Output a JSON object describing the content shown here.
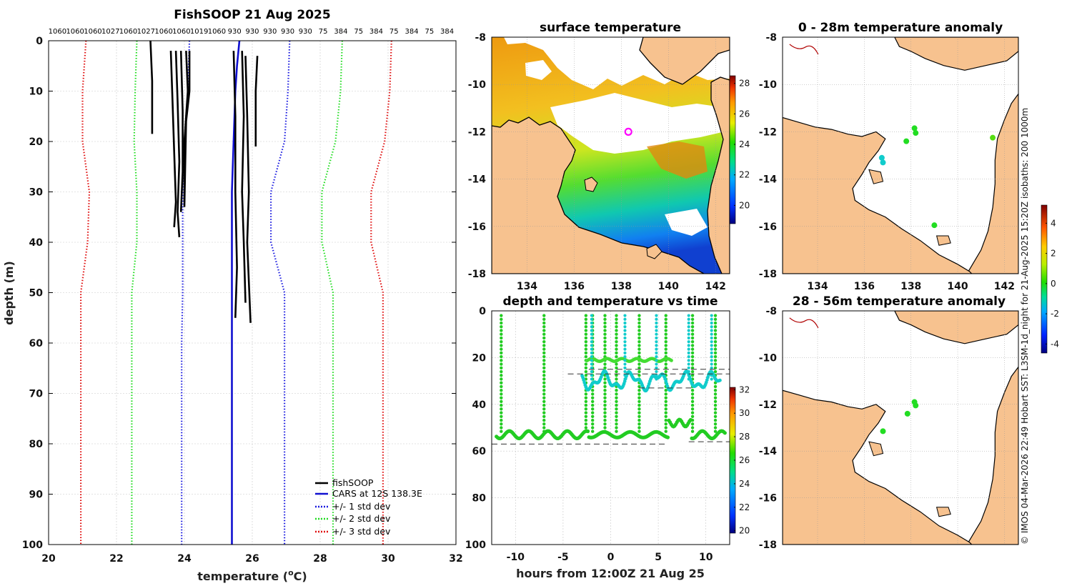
{
  "colors": {
    "land": "#F7C28F",
    "profile": "#000000",
    "cars": "#1010D0",
    "std1": "#1a1ae0",
    "std2": "#22dd22",
    "std3": "#e01010",
    "grid": "#c8c8c8",
    "marker": "#ff00ff"
  },
  "chart_data": [
    {
      "type": "line",
      "name": "profile",
      "title": "FishSOOP 21 Aug 2025",
      "xlabel": "temperature (",
      "xlabel_sup": "o",
      "xlabel_end": "C)",
      "ylabel": "depth (m)",
      "xlim": [
        20,
        32
      ],
      "ylim": [
        0,
        100
      ],
      "xticks": [
        20,
        22,
        24,
        26,
        28,
        30,
        32
      ],
      "yticks": [
        0,
        10,
        20,
        30,
        40,
        50,
        60,
        70,
        80,
        90,
        100
      ],
      "top_labels": [
        "1060",
        "1060",
        "1060",
        "1027",
        "1060",
        "1027",
        "1060",
        "1060",
        "1019",
        "1060",
        "930",
        "930",
        "930",
        "930",
        "930",
        "75",
        "384",
        "75",
        "384",
        "75",
        "384",
        "75",
        "384"
      ],
      "legend": [
        "fishSOOP",
        "CARS at 12S 138.3E",
        "+/- 1 std dev",
        "+/- 2 std dev",
        "+/- 3 std dev"
      ],
      "series": [
        {
          "name": "CARS at 12S 138.3E",
          "style": "solid",
          "color_key": "cars",
          "points": [
            [
              25.62,
              0
            ],
            [
              25.55,
              5
            ],
            [
              25.5,
              10
            ],
            [
              25.45,
              20
            ],
            [
              25.4,
              30
            ],
            [
              25.4,
              40
            ],
            [
              25.4,
              50
            ],
            [
              25.4,
              60
            ],
            [
              25.4,
              70
            ],
            [
              25.4,
              80
            ],
            [
              25.4,
              90
            ],
            [
              25.4,
              100
            ]
          ]
        },
        {
          "name": "+1 std dev",
          "style": "dotted",
          "color_key": "std1",
          "points": [
            [
              27.1,
              0
            ],
            [
              27.05,
              10
            ],
            [
              26.95,
              20
            ],
            [
              26.55,
              30
            ],
            [
              26.55,
              40
            ],
            [
              26.95,
              50
            ],
            [
              26.95,
              60
            ],
            [
              26.95,
              70
            ],
            [
              26.95,
              80
            ],
            [
              26.95,
              90
            ],
            [
              26.95,
              100
            ]
          ]
        },
        {
          "name": "-1 std dev",
          "style": "dotted",
          "color_key": "std1",
          "points": [
            [
              24.15,
              0
            ],
            [
              24.1,
              10
            ],
            [
              24.0,
              20
            ],
            [
              23.95,
              30
            ],
            [
              23.95,
              40
            ],
            [
              23.95,
              50
            ],
            [
              23.92,
              60
            ],
            [
              23.92,
              70
            ],
            [
              23.92,
              80
            ],
            [
              23.92,
              90
            ],
            [
              23.92,
              100
            ]
          ]
        },
        {
          "name": "+2 std dev",
          "style": "dotted",
          "color_key": "std2",
          "points": [
            [
              28.65,
              0
            ],
            [
              28.6,
              10
            ],
            [
              28.45,
              20
            ],
            [
              28.05,
              30
            ],
            [
              28.05,
              40
            ],
            [
              28.38,
              50
            ],
            [
              28.38,
              60
            ],
            [
              28.38,
              70
            ],
            [
              28.38,
              80
            ],
            [
              28.38,
              90
            ],
            [
              28.38,
              100
            ]
          ]
        },
        {
          "name": "-2 std dev",
          "style": "dotted",
          "color_key": "std2",
          "points": [
            [
              22.6,
              0
            ],
            [
              22.55,
              10
            ],
            [
              22.52,
              20
            ],
            [
              22.6,
              30
            ],
            [
              22.6,
              40
            ],
            [
              22.45,
              50
            ],
            [
              22.45,
              60
            ],
            [
              22.45,
              70
            ],
            [
              22.45,
              80
            ],
            [
              22.45,
              90
            ],
            [
              22.45,
              100
            ]
          ]
        },
        {
          "name": "+3 std dev",
          "style": "dotted",
          "color_key": "std3",
          "points": [
            [
              30.1,
              0
            ],
            [
              30.05,
              10
            ],
            [
              29.9,
              20
            ],
            [
              29.5,
              30
            ],
            [
              29.5,
              40
            ],
            [
              29.85,
              50
            ],
            [
              29.85,
              60
            ],
            [
              29.85,
              70
            ],
            [
              29.85,
              80
            ],
            [
              29.85,
              90
            ],
            [
              29.85,
              100
            ]
          ]
        },
        {
          "name": "-3 std dev",
          "style": "dotted",
          "color_key": "std3",
          "points": [
            [
              21.1,
              0
            ],
            [
              21.0,
              10
            ],
            [
              21.0,
              20
            ],
            [
              21.2,
              30
            ],
            [
              21.15,
              40
            ],
            [
              20.95,
              50
            ],
            [
              20.95,
              60
            ],
            [
              20.95,
              70
            ],
            [
              20.95,
              80
            ],
            [
              20.95,
              90
            ],
            [
              20.95,
              100
            ]
          ]
        },
        {
          "name": "fishSOOP",
          "style": "solid",
          "color_key": "profile",
          "points": [
            [
              23.0,
              0
            ],
            [
              23.05,
              8
            ],
            [
              23.05,
              18.5
            ]
          ]
        },
        {
          "name": "fishSOOP",
          "style": "solid",
          "color_key": "profile",
          "points": [
            [
              23.6,
              2
            ],
            [
              23.65,
              12
            ],
            [
              23.7,
              22
            ],
            [
              23.75,
              32
            ],
            [
              23.7,
              37
            ]
          ]
        },
        {
          "name": "fishSOOP",
          "style": "solid",
          "color_key": "profile",
          "points": [
            [
              23.75,
              2
            ],
            [
              23.8,
              12
            ],
            [
              23.85,
              24
            ],
            [
              23.8,
              34
            ],
            [
              23.85,
              39
            ]
          ]
        },
        {
          "name": "fishSOOP",
          "style": "solid",
          "color_key": "profile",
          "points": [
            [
              23.9,
              2
            ],
            [
              23.95,
              14
            ],
            [
              23.95,
              26
            ],
            [
              23.9,
              34
            ]
          ]
        },
        {
          "name": "fishSOOP",
          "style": "solid",
          "color_key": "profile",
          "points": [
            [
              24.05,
              2
            ],
            [
              24.1,
              10
            ],
            [
              24.0,
              20
            ],
            [
              24.0,
              32
            ]
          ]
        },
        {
          "name": "fishSOOP",
          "style": "solid",
          "color_key": "profile",
          "points": [
            [
              24.15,
              2
            ],
            [
              24.15,
              10
            ],
            [
              24.05,
              16
            ],
            [
              24.0,
              33
            ]
          ]
        },
        {
          "name": "fishSOOP",
          "style": "solid",
          "color_key": "profile",
          "points": [
            [
              25.45,
              2
            ],
            [
              25.5,
              15
            ],
            [
              25.5,
              30
            ],
            [
              25.55,
              45
            ],
            [
              25.5,
              55
            ]
          ]
        },
        {
          "name": "fishSOOP",
          "style": "solid",
          "color_key": "profile",
          "points": [
            [
              25.7,
              2
            ],
            [
              25.75,
              15
            ],
            [
              25.7,
              30
            ],
            [
              25.75,
              40
            ],
            [
              25.8,
              52
            ]
          ]
        },
        {
          "name": "fishSOOP",
          "style": "solid",
          "color_key": "profile",
          "points": [
            [
              25.8,
              3
            ],
            [
              25.85,
              15
            ],
            [
              25.9,
              30
            ],
            [
              25.85,
              40
            ],
            [
              25.95,
              56
            ]
          ]
        },
        {
          "name": "fishSOOP",
          "style": "solid",
          "color_key": "profile",
          "points": [
            [
              26.15,
              3
            ],
            [
              26.1,
              10
            ],
            [
              26.1,
              21
            ]
          ]
        }
      ]
    },
    {
      "type": "heatmap",
      "name": "sst_map",
      "title": "surface temperature",
      "xticks": [
        134,
        136,
        138,
        140,
        142
      ],
      "yticks": [
        -8,
        -10,
        -12,
        -14,
        -16,
        -18
      ],
      "xlim": [
        132.5,
        142.6
      ],
      "ylim": [
        -18,
        -8
      ],
      "colorbar_ticks": [
        20,
        22,
        24,
        26,
        28
      ],
      "colorbar_range": [
        18.8,
        28.5
      ],
      "marker": {
        "lon": 138.3,
        "lat": -12.0
      }
    },
    {
      "type": "scatter",
      "name": "depth_time",
      "title": "depth and temperature vs time",
      "xlabel": "hours from 12:00Z 21 Aug 25",
      "xlim": [
        -12.5,
        12.5
      ],
      "ylim": [
        0,
        100
      ],
      "xticks": [
        -10,
        -5,
        0,
        5,
        10
      ],
      "yticks": [
        0,
        20,
        40,
        60,
        80,
        100
      ],
      "colorbar_ticks": [
        20,
        22,
        24,
        26,
        28,
        30,
        32
      ],
      "colorbar_range": [
        19.8,
        32.2
      ]
    },
    {
      "type": "scatter",
      "name": "anomaly_0_28",
      "title": "0 - 28m temperature anomaly",
      "xticks": [
        134,
        136,
        138,
        140,
        142
      ],
      "yticks": [
        -8,
        -10,
        -12,
        -14,
        -16,
        -18
      ],
      "points": [
        {
          "lon": 138.15,
          "lat": -11.85,
          "v": 0.3
        },
        {
          "lon": 138.2,
          "lat": -12.05,
          "v": 0.2
        },
        {
          "lon": 137.8,
          "lat": -12.4,
          "v": 0.3
        },
        {
          "lon": 136.75,
          "lat": -13.1,
          "v": -1.5
        },
        {
          "lon": 136.8,
          "lat": -13.3,
          "v": -1.6
        },
        {
          "lon": 141.5,
          "lat": -12.25,
          "v": 0.8
        },
        {
          "lon": 139.0,
          "lat": -15.95,
          "v": 0.2
        }
      ]
    },
    {
      "type": "scatter",
      "name": "anomaly_28_56",
      "title": "28 - 56m temperature anomaly",
      "points": [
        {
          "lon": 138.15,
          "lat": -11.9,
          "v": 0.3
        },
        {
          "lon": 138.2,
          "lat": -12.05,
          "v": 0.3
        },
        {
          "lon": 137.85,
          "lat": -12.4,
          "v": 0.2
        },
        {
          "lon": 136.8,
          "lat": -13.15,
          "v": -1.0
        }
      ]
    },
    {
      "type": "heatmap",
      "name": "anomaly_colorbar",
      "colorbar_ticks": [
        -4,
        -2,
        0,
        2,
        4
      ],
      "colorbar_range": [
        -4.6,
        5.2
      ]
    }
  ],
  "credit": "© IMOS 04-Mar-2026 22:49 Hobart SST: L3SM-1d_night for 21-Aug-2025 15:20Z isobaths: 200  1000m"
}
